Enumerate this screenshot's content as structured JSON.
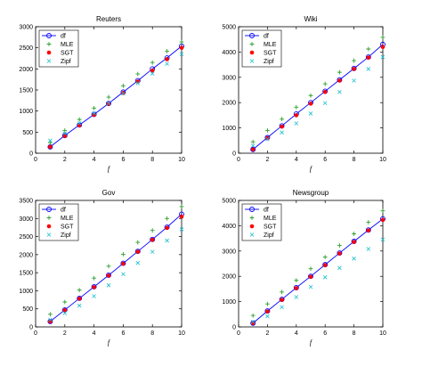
{
  "chart_data": [
    {
      "type": "line",
      "title": "Reuters",
      "xlabel": "f",
      "ylabel": "",
      "xlim": [
        0,
        10
      ],
      "ylim": [
        0,
        3000
      ],
      "xticks": [
        "0",
        "2",
        "4",
        "6",
        "8",
        "10"
      ],
      "yticks": [
        "0",
        "500",
        "1000",
        "1500",
        "2000",
        "2500",
        "3000"
      ],
      "legend_position": "top-left",
      "x": [
        1,
        2,
        3,
        4,
        5,
        6,
        7,
        8,
        9,
        10
      ],
      "series": [
        {
          "name": "df",
          "color": "#0000ff",
          "marker": "circle-line",
          "values": [
            150,
            420,
            670,
            920,
            1180,
            1450,
            1720,
            2000,
            2260,
            2540
          ]
        },
        {
          "name": "MLE",
          "color": "#2ca02c",
          "marker": "plus",
          "values": [
            250,
            540,
            800,
            1070,
            1330,
            1600,
            1880,
            2150,
            2420,
            2640
          ]
        },
        {
          "name": "SGT",
          "color": "#ff0000",
          "marker": "dot",
          "values": [
            150,
            410,
            660,
            910,
            1170,
            1430,
            1700,
            1960,
            2230,
            2500
          ]
        },
        {
          "name": "Zipf",
          "color": "#17becf",
          "marker": "x",
          "values": [
            300,
            470,
            710,
            950,
            1180,
            1420,
            1660,
            1890,
            2120,
            2350
          ]
        }
      ]
    },
    {
      "type": "line",
      "title": "Wiki",
      "xlabel": "f",
      "ylabel": "",
      "xlim": [
        0,
        10
      ],
      "ylim": [
        0,
        5000
      ],
      "xticks": [
        "0",
        "2",
        "4",
        "6",
        "8",
        "10"
      ],
      "yticks": [
        "0",
        "1000",
        "2000",
        "3000",
        "4000",
        "5000"
      ],
      "legend_position": "top-left",
      "x": [
        1,
        2,
        3,
        4,
        5,
        6,
        7,
        8,
        9,
        10
      ],
      "series": [
        {
          "name": "df",
          "color": "#0000ff",
          "marker": "circle-line",
          "values": [
            150,
            620,
            1080,
            1550,
            2000,
            2450,
            2900,
            3350,
            3800,
            4300
          ]
        },
        {
          "name": "MLE",
          "color": "#2ca02c",
          "marker": "plus",
          "values": [
            450,
            900,
            1350,
            1820,
            2280,
            2740,
            3200,
            3660,
            4120,
            4580
          ]
        },
        {
          "name": "SGT",
          "color": "#ff0000",
          "marker": "dot",
          "values": [
            150,
            600,
            1050,
            1500,
            1960,
            2420,
            2870,
            3330,
            3780,
            4200
          ]
        },
        {
          "name": "Zipf",
          "color": "#17becf",
          "marker": "x",
          "values": [
            300,
            560,
            820,
            1180,
            1570,
            1980,
            2420,
            2870,
            3330,
            3800
          ]
        }
      ]
    },
    {
      "type": "line",
      "title": "Gov",
      "xlabel": "f",
      "ylabel": "",
      "xlim": [
        0,
        10
      ],
      "ylim": [
        0,
        3500
      ],
      "xticks": [
        "0",
        "2",
        "4",
        "6",
        "8",
        "10"
      ],
      "yticks": [
        "0",
        "500",
        "1000",
        "1500",
        "2000",
        "2500",
        "3000",
        "3500"
      ],
      "legend_position": "top-left",
      "x": [
        1,
        2,
        3,
        4,
        5,
        6,
        7,
        8,
        9,
        10
      ],
      "series": [
        {
          "name": "df",
          "color": "#0000ff",
          "marker": "circle-line",
          "values": [
            150,
            470,
            790,
            1110,
            1430,
            1760,
            2090,
            2420,
            2760,
            3120
          ]
        },
        {
          "name": "MLE",
          "color": "#2ca02c",
          "marker": "plus",
          "values": [
            350,
            690,
            1020,
            1350,
            1680,
            2010,
            2340,
            2670,
            3000,
            3330
          ]
        },
        {
          "name": "SGT",
          "color": "#ff0000",
          "marker": "dot",
          "values": [
            150,
            460,
            780,
            1100,
            1420,
            1750,
            2080,
            2410,
            2740,
            3050
          ]
        },
        {
          "name": "Zipf",
          "color": "#17becf",
          "marker": "x",
          "values": [
            200,
            380,
            590,
            850,
            1150,
            1460,
            1770,
            2080,
            2390,
            2700
          ]
        }
      ]
    },
    {
      "type": "line",
      "title": "Newsgroup",
      "xlabel": "f",
      "ylabel": "",
      "xlim": [
        0,
        10
      ],
      "ylim": [
        0,
        5000
      ],
      "xticks": [
        "0",
        "2",
        "4",
        "6",
        "8",
        "10"
      ],
      "yticks": [
        "0",
        "1000",
        "2000",
        "3000",
        "4000",
        "5000"
      ],
      "legend_position": "top-left",
      "x": [
        1,
        2,
        3,
        4,
        5,
        6,
        7,
        8,
        9,
        10
      ],
      "series": [
        {
          "name": "df",
          "color": "#0000ff",
          "marker": "circle-line",
          "values": [
            150,
            630,
            1090,
            1550,
            2000,
            2460,
            2920,
            3380,
            3830,
            4270
          ]
        },
        {
          "name": "MLE",
          "color": "#2ca02c",
          "marker": "plus",
          "values": [
            450,
            910,
            1380,
            1840,
            2300,
            2760,
            3220,
            3680,
            4140,
            4590
          ]
        },
        {
          "name": "SGT",
          "color": "#ff0000",
          "marker": "dot",
          "values": [
            150,
            610,
            1070,
            1530,
            1980,
            2440,
            2900,
            3360,
            3810,
            4230
          ]
        },
        {
          "name": "Zipf",
          "color": "#17becf",
          "marker": "x",
          "values": [
            200,
            420,
            780,
            1180,
            1580,
            1960,
            2330,
            2700,
            3080,
            3450
          ]
        }
      ]
    }
  ]
}
